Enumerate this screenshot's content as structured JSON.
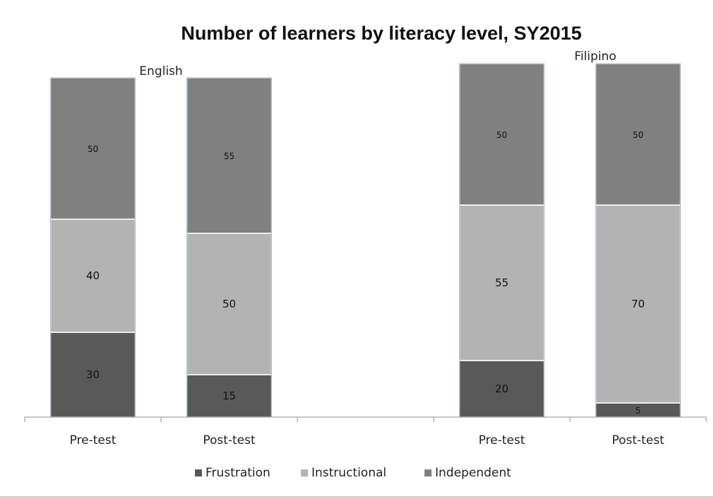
{
  "chart_data": {
    "type": "bar",
    "stacked": true,
    "title": "Number of learners by literacy level, SY2015",
    "groups": [
      {
        "name": "English",
        "categories": [
          "Pre-test",
          "Post-test"
        ],
        "series": [
          {
            "name": "Frustration",
            "values": [
              30,
              15
            ]
          },
          {
            "name": "Instructional",
            "values": [
              40,
              50
            ]
          },
          {
            "name": "Independent",
            "values": [
              50,
              55
            ]
          }
        ]
      },
      {
        "name": "Filipino",
        "categories": [
          "Pre-test",
          "Post-test"
        ],
        "series": [
          {
            "name": "Frustration",
            "values": [
              20,
              5
            ]
          },
          {
            "name": "Instructional",
            "values": [
              55,
              70
            ]
          },
          {
            "name": "Independent",
            "values": [
              50,
              50
            ]
          }
        ]
      }
    ],
    "legend": [
      "Frustration",
      "Instructional",
      "Independent"
    ],
    "legend_position": "bottom",
    "colors": {
      "Frustration": "#595959",
      "Instructional": "#b3b3b3",
      "Independent": "#808080"
    },
    "grid": false,
    "ylim": [
      0,
      125
    ]
  }
}
